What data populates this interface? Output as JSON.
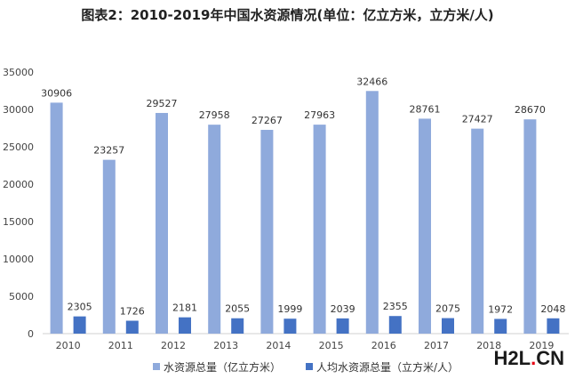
{
  "chart_data": {
    "type": "bar",
    "title": "图表2：2010-2019年中国水资源情况(单位：亿立方米，立方米/人)",
    "categories": [
      "2010",
      "2011",
      "2012",
      "2013",
      "2014",
      "2015",
      "2016",
      "2017",
      "2018",
      "2019"
    ],
    "series": [
      {
        "name": "水资源总量（亿立方米）",
        "color": "#8faadc",
        "values": [
          30906,
          23257,
          29527,
          27958,
          27267,
          27963,
          32466,
          28761,
          27427,
          28670
        ]
      },
      {
        "name": "人均水资源总量（立方米/人）",
        "color": "#4472c4",
        "values": [
          2305,
          1726,
          2181,
          2055,
          1999,
          2039,
          2355,
          2075,
          1972,
          2048
        ]
      }
    ],
    "ylim": [
      0,
      35000
    ],
    "yticks": [
      0,
      5000,
      10000,
      15000,
      20000,
      25000,
      30000,
      35000
    ],
    "grid": false,
    "legend": "bottom"
  },
  "watermark": {
    "left": "H2L",
    "dot": ".",
    "right": "CN"
  }
}
